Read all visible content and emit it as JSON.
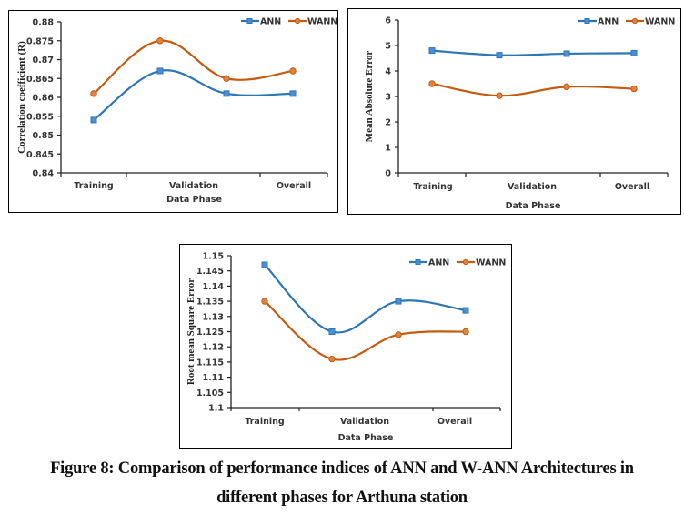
{
  "caption": {
    "line1": "Figure 8: Comparison of performance indices of ANN and W-ANN Architectures in",
    "line2": "different phases for Arthuna station"
  },
  "colors": {
    "ANN": "#2E75B6",
    "WANN": "#C55A11"
  },
  "chart_data": [
    {
      "type": "line",
      "title": "",
      "xlabel": "Data Phase",
      "ylabel": "Correlation coefficient (R)",
      "categories": [
        "Training",
        "Validation",
        "Overall"
      ],
      "x": [
        "Training",
        "Validation",
        "Validation",
        "Overall"
      ],
      "ylim": [
        0.84,
        0.88
      ],
      "yticks": [
        "0.84",
        "0.845",
        "0.85",
        "0.855",
        "0.86",
        "0.865",
        "0.87",
        "0.875",
        "0.88"
      ],
      "smooth": true,
      "grid": false,
      "legend": "top-right",
      "series": [
        {
          "name": "ANN",
          "marker": "square",
          "values": [
            0.854,
            0.867,
            0.861,
            0.861
          ]
        },
        {
          "name": "WANN",
          "marker": "circle",
          "values": [
            0.861,
            0.875,
            0.865,
            0.867
          ]
        }
      ]
    },
    {
      "type": "line",
      "title": "",
      "xlabel": "Data Phase",
      "ylabel": "Mean Absolute Error",
      "categories": [
        "Training",
        "Validation",
        "Overall"
      ],
      "x": [
        "Training",
        "Validation",
        "Validation",
        "Overall"
      ],
      "ylim": [
        0,
        6
      ],
      "yticks": [
        "0",
        "1",
        "2",
        "3",
        "4",
        "5",
        "6"
      ],
      "smooth": true,
      "grid": false,
      "legend": "top-right",
      "series": [
        {
          "name": "ANN",
          "marker": "square",
          "values": [
            4.8,
            4.62,
            4.68,
            4.7
          ]
        },
        {
          "name": "WANN",
          "marker": "circle",
          "values": [
            3.5,
            3.03,
            3.38,
            3.3
          ]
        }
      ]
    },
    {
      "type": "line",
      "title": "",
      "xlabel": "Data Phase",
      "ylabel": "Root mean Square Error",
      "categories": [
        "Training",
        "Validation",
        "Overall"
      ],
      "x": [
        "Training",
        "Validation",
        "Validation",
        "Overall"
      ],
      "ylim": [
        1.1,
        1.15
      ],
      "yticks": [
        "1.1",
        "1.105",
        "1.11",
        "1.115",
        "1.12",
        "1.125",
        "1.13",
        "1.135",
        "1.14",
        "1.145",
        "1.15"
      ],
      "smooth": true,
      "grid": false,
      "legend": "top-right",
      "series": [
        {
          "name": "ANN",
          "marker": "square",
          "values": [
            1.147,
            1.125,
            1.135,
            1.132
          ]
        },
        {
          "name": "WANN",
          "marker": "circle",
          "values": [
            1.135,
            1.116,
            1.124,
            1.125
          ]
        }
      ]
    }
  ]
}
